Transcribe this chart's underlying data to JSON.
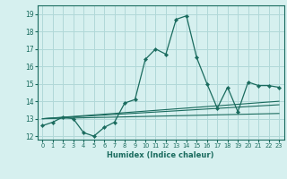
{
  "xlabel": "Humidex (Indice chaleur)",
  "ylabel": "",
  "background_color": "#d6f0ef",
  "grid_color": "#b0d8d8",
  "line_color": "#1a6b5e",
  "xlim": [
    -0.5,
    23.5
  ],
  "ylim": [
    11.8,
    19.5
  ],
  "xticks": [
    0,
    1,
    2,
    3,
    4,
    5,
    6,
    7,
    8,
    9,
    10,
    11,
    12,
    13,
    14,
    15,
    16,
    17,
    18,
    19,
    20,
    21,
    22,
    23
  ],
  "yticks": [
    12,
    13,
    14,
    15,
    16,
    17,
    18,
    19
  ],
  "series": [
    {
      "x": [
        0,
        1,
        2,
        3,
        4,
        5,
        6,
        7,
        8,
        9,
        10,
        11,
        12,
        13,
        14,
        15,
        16,
        17,
        18,
        19,
        20,
        21,
        22,
        23
      ],
      "y": [
        12.6,
        12.8,
        13.1,
        13.0,
        12.2,
        12.0,
        12.5,
        12.8,
        13.9,
        14.1,
        16.4,
        17.0,
        16.7,
        18.7,
        18.9,
        16.5,
        15.0,
        13.6,
        14.8,
        13.4,
        15.1,
        14.9,
        14.9,
        14.8
      ]
    },
    {
      "x": [
        0,
        23
      ],
      "y": [
        13.0,
        14.0
      ]
    },
    {
      "x": [
        0,
        23
      ],
      "y": [
        13.0,
        13.3
      ]
    },
    {
      "x": [
        0,
        23
      ],
      "y": [
        13.0,
        13.8
      ]
    }
  ]
}
